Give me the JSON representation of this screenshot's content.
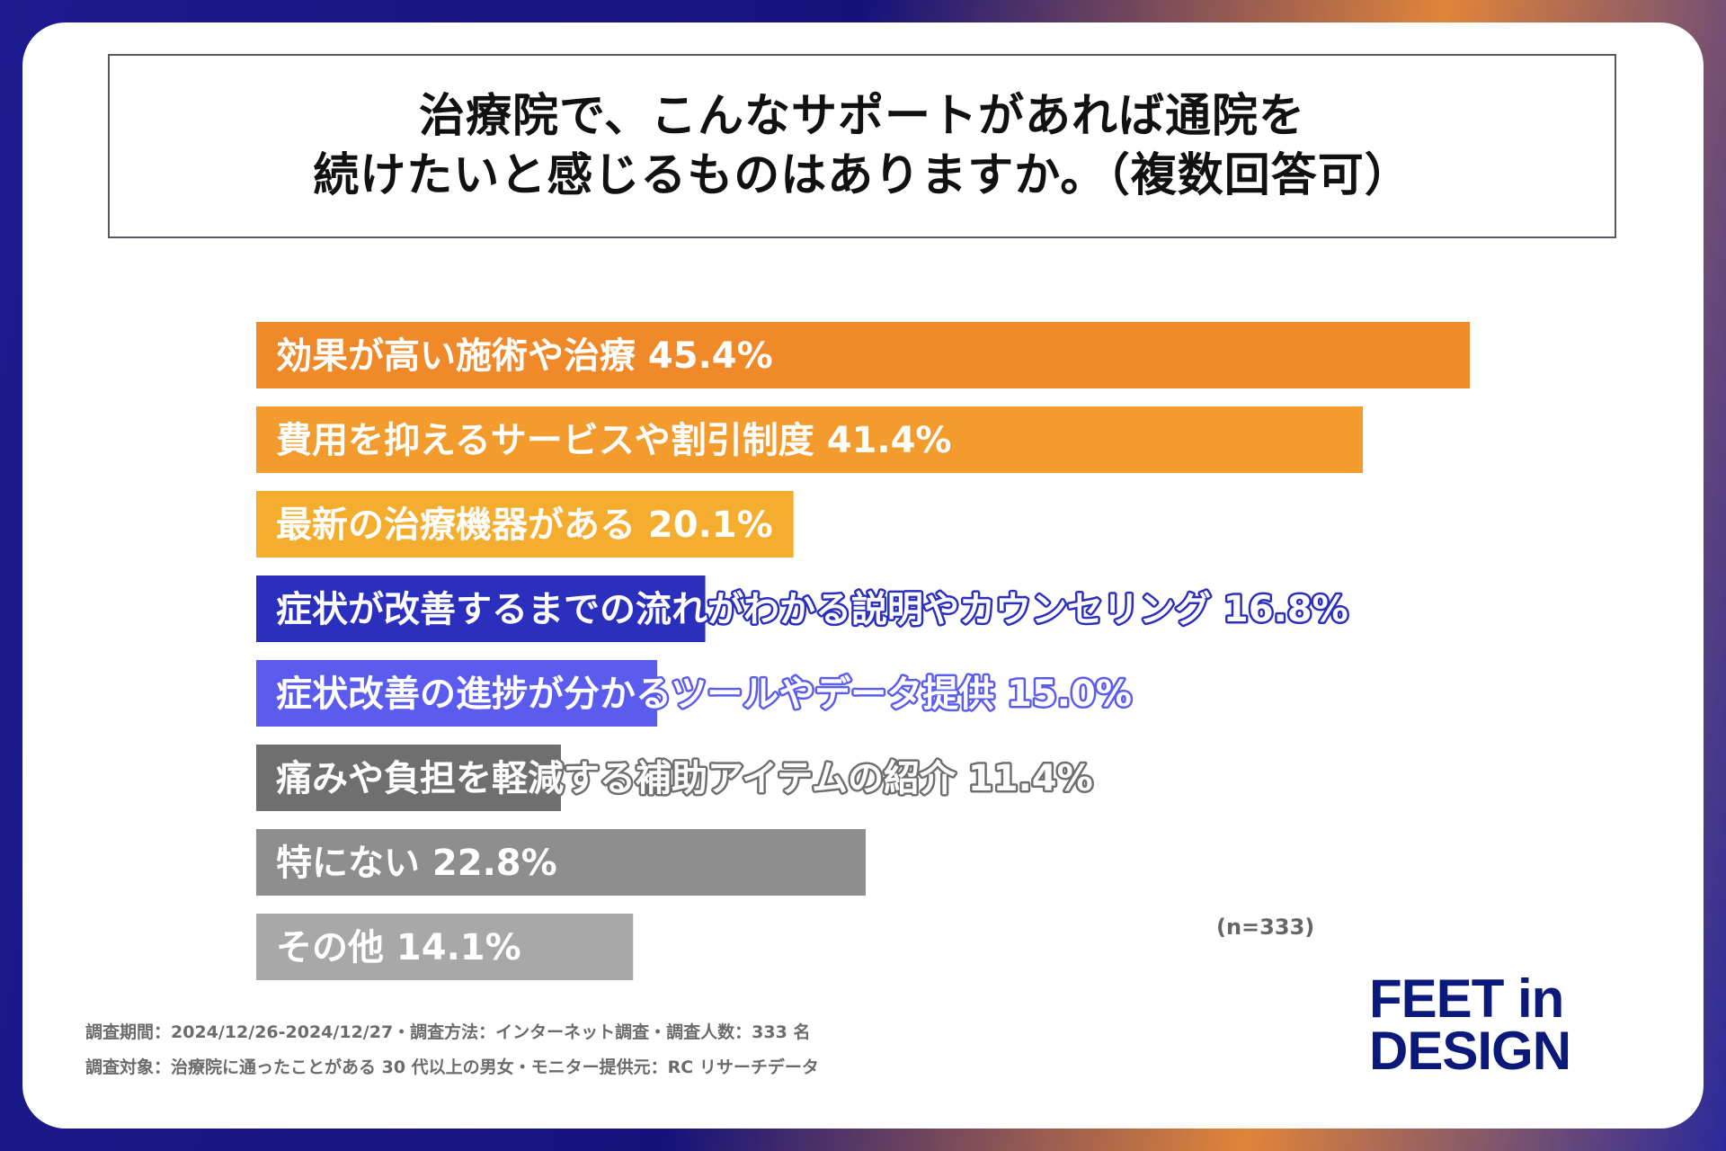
{
  "title": {
    "line1": "治療院で、こんなサポートがあれば通院を",
    "line2": "続けたいと感じるものはありますか。（複数回答可）"
  },
  "chart_data": {
    "type": "bar",
    "orientation": "horizontal",
    "categories": [
      "効果が高い施術や治療",
      "費用を抑えるサービスや割引制度",
      "最新の治療機器がある",
      "症状が改善するまでの流れがわかる説明やカウンセリング",
      "症状改善の進捗が分かるツールやデータ提供",
      "痛みや負担を軽減する補助アイテムの紹介",
      "特にない",
      "その他"
    ],
    "values": [
      45.4,
      41.4,
      20.1,
      16.8,
      15.0,
      11.4,
      22.8,
      14.1
    ],
    "value_labels": [
      "45.4%",
      "41.4%",
      "20.1%",
      "16.8%",
      "15.0%",
      "11.4%",
      "22.8%",
      "14.1%"
    ],
    "colors": [
      "#f0892a",
      "#f39b2c",
      "#f5ad2f",
      "#2b2fbd",
      "#5b5cee",
      "#6f6f6f",
      "#8e8e8e",
      "#a8a8a8"
    ],
    "xlim": [
      0,
      45.4
    ],
    "n_label": "(n=333)"
  },
  "footnote": {
    "line1": "調査期間：2024/12/26-2024/12/27・調査方法：インターネット調査・調査人数：333 名",
    "line2": "調査対象：治療院に通ったことがある 30 代以上の男女・モニター提供元：RC リサーチデータ"
  },
  "logo": {
    "line1": "FEET in",
    "line2": "DESIGN"
  }
}
